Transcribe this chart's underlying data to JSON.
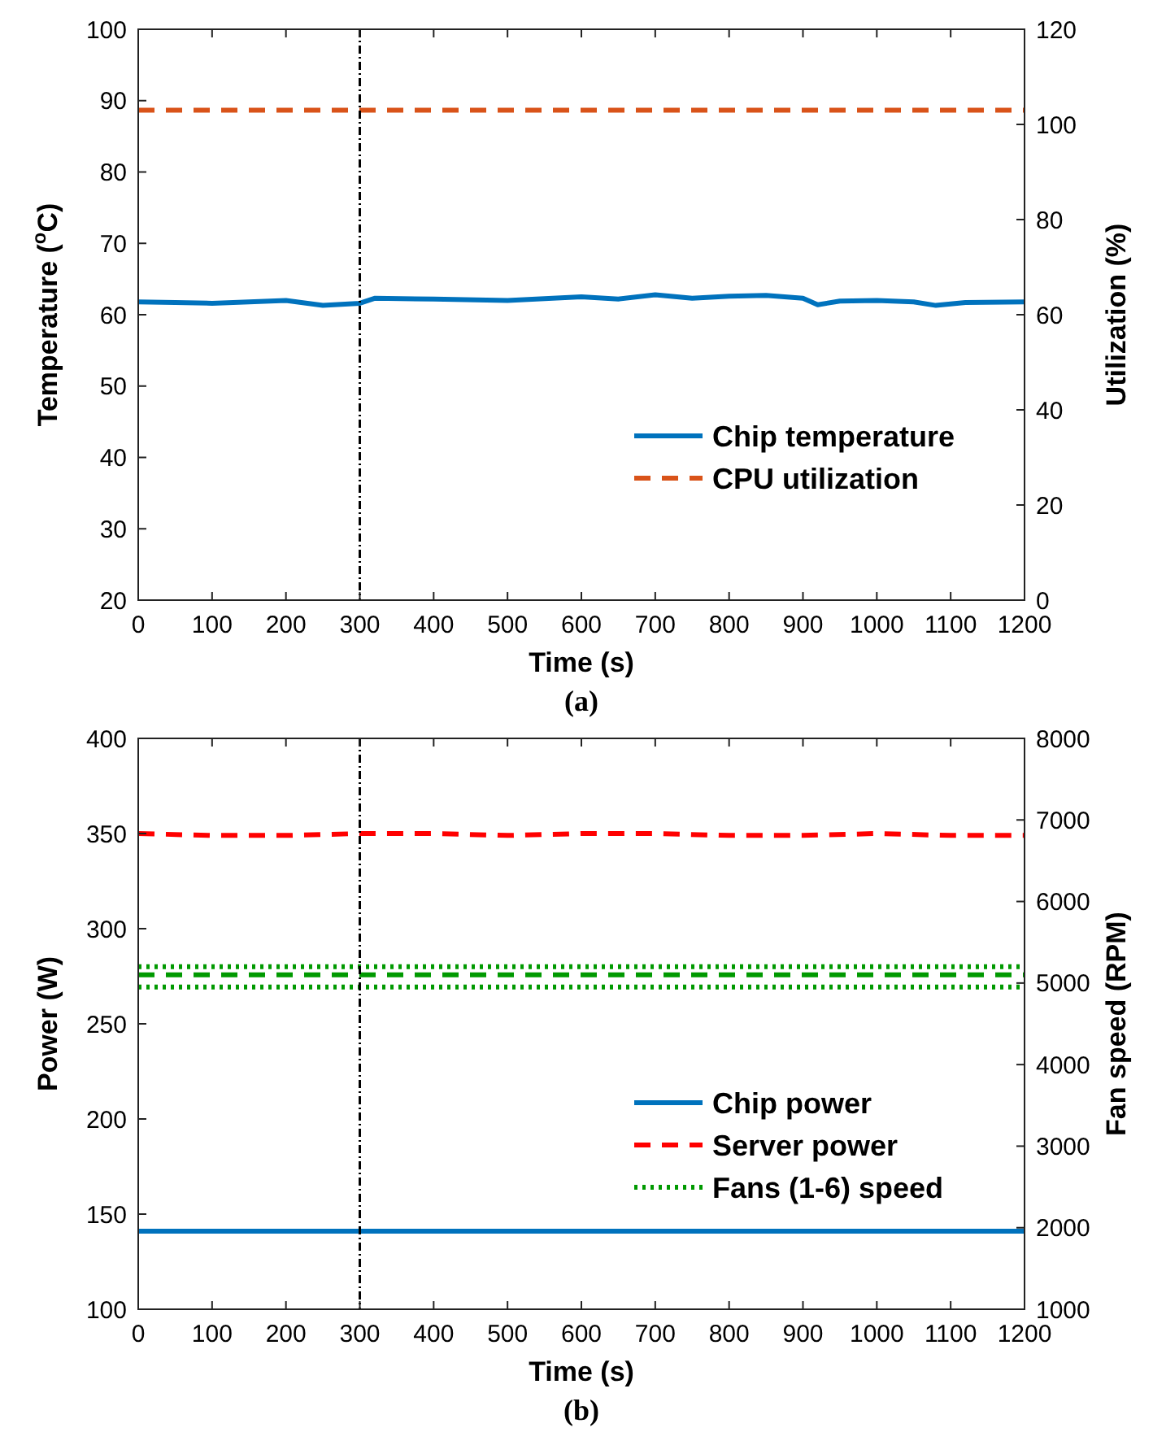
{
  "chart_data": [
    {
      "type": "line",
      "xlabel": "Time (s)",
      "ylabel": "Temperature ($^{o}$C)",
      "y2label": "Utilization (%)",
      "xlim": [
        0,
        1200
      ],
      "xticks": [
        0,
        100,
        200,
        300,
        400,
        500,
        600,
        700,
        800,
        900,
        1000,
        1100,
        1200
      ],
      "ylim": [
        20,
        100
      ],
      "yticks": [
        20,
        30,
        40,
        50,
        60,
        70,
        80,
        90,
        100
      ],
      "y2lim": [
        0,
        120
      ],
      "y2ticks": [
        0,
        20,
        40,
        60,
        80,
        100,
        120
      ],
      "legend": "bottom right",
      "grid": false,
      "series": [
        {
          "name": "Chip temperature",
          "color": "#0072bd",
          "line_style": "solid",
          "x": [
            0,
            50,
            100,
            150,
            200,
            250,
            300,
            320,
            400,
            500,
            600,
            650,
            700,
            750,
            800,
            850,
            900,
            920,
            950,
            1000,
            1050,
            1080,
            1120,
            1200
          ],
          "values": [
            61.8,
            61.7,
            61.6,
            61.8,
            62.0,
            61.3,
            61.6,
            62.3,
            62.2,
            62.0,
            62.5,
            62.2,
            62.8,
            62.3,
            62.6,
            62.7,
            62.3,
            61.4,
            61.9,
            62.0,
            61.8,
            61.3,
            61.7,
            61.8
          ]
        },
        {
          "name": "CPU utilization",
          "color": "#d95319",
          "line_style": "dashed",
          "axis": "y2",
          "x": [
            0,
            1200
          ],
          "values": [
            103,
            103
          ]
        }
      ],
      "ref_lines": [
        {
          "axis": "x",
          "value": 300,
          "color": "#000000",
          "line_style": "dashed"
        }
      ],
      "annotations": [
        "(a)"
      ]
    },
    {
      "type": "line",
      "xlabel": "Time (s)",
      "ylabel": "Power (W)",
      "y2label": "Fan speed (RPM)",
      "xlim": [
        0,
        1200
      ],
      "xticks": [
        0,
        100,
        200,
        300,
        400,
        500,
        600,
        700,
        800,
        900,
        1000,
        1100,
        1200
      ],
      "ylim": [
        100,
        400
      ],
      "yticks": [
        100,
        150,
        200,
        250,
        300,
        350,
        400
      ],
      "y2lim": [
        1000,
        8000
      ],
      "y2ticks": [
        1000,
        2000,
        3000,
        4000,
        5000,
        6000,
        7000,
        8000
      ],
      "legend": "bottom right",
      "grid": false,
      "series": [
        {
          "name": "Chip power",
          "color": "#0072bd",
          "line_style": "solid",
          "x": [
            0,
            1200
          ],
          "values": [
            141,
            141
          ]
        },
        {
          "name": "Server power",
          "color": "#ff0000",
          "line_style": "dashed",
          "x": [
            0,
            100,
            200,
            300,
            400,
            500,
            600,
            700,
            800,
            900,
            1000,
            1100,
            1200
          ],
          "values": [
            350,
            349,
            349,
            350,
            350,
            349,
            350,
            350,
            349,
            349,
            350,
            349,
            349
          ]
        },
        {
          "name": "Fans (1-6) speed",
          "color": "#009900",
          "line_style": "dotted",
          "axis": "y2",
          "x": [
            0,
            1200
          ],
          "values": [
            5200,
            5200
          ]
        },
        {
          "color": "#009900",
          "line_style": "dashed",
          "axis": "y2",
          "x": [
            0,
            1200
          ],
          "values": [
            5100,
            5100
          ]
        },
        {
          "color": "#009900",
          "line_style": "dotted",
          "axis": "y2",
          "x": [
            0,
            1200
          ],
          "values": [
            4950,
            4950
          ]
        }
      ],
      "ref_lines": [
        {
          "axis": "x",
          "value": 300,
          "color": "#000000",
          "line_style": "dashed"
        }
      ],
      "annotations": [
        "(b)"
      ]
    }
  ]
}
